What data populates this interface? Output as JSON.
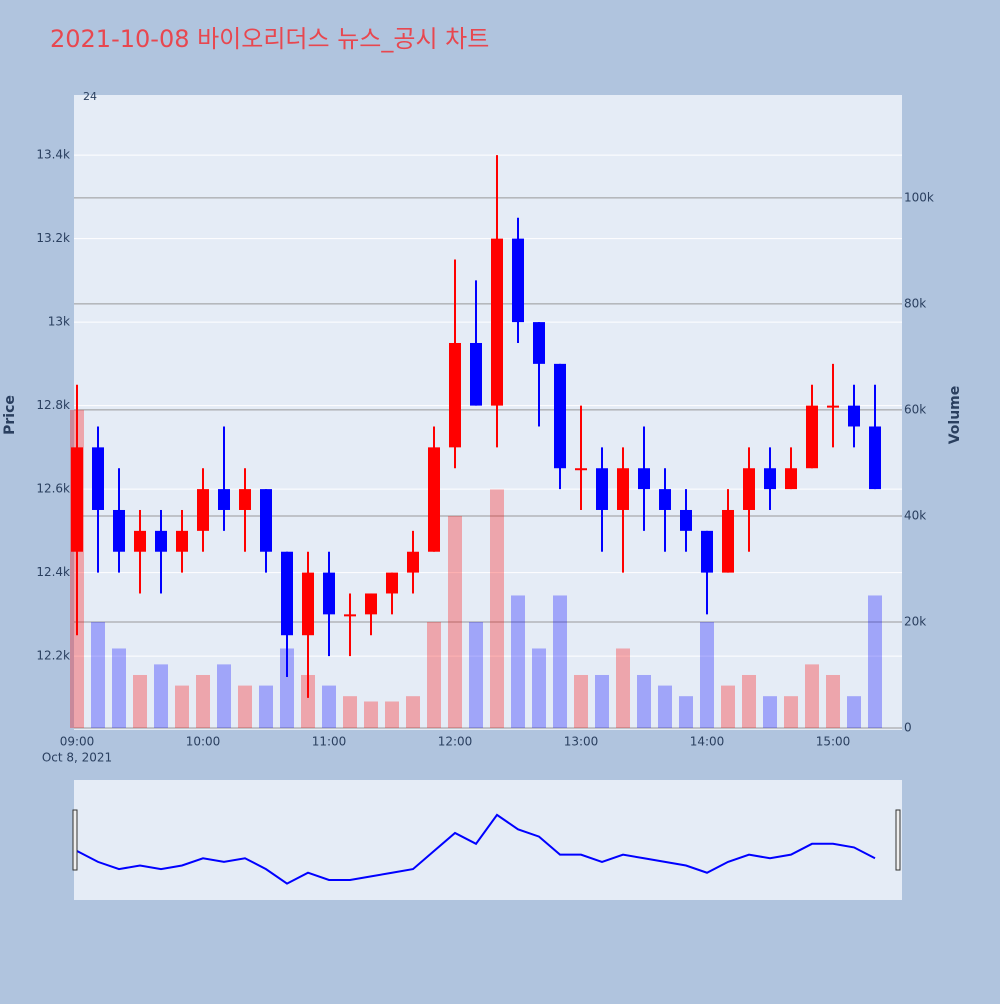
{
  "chart_data": {
    "type": "candlestick",
    "title": "2021-10-08 바이오리더스 뉴스_공시 차트",
    "date_label": "Oct 8, 2021",
    "annotations": [
      "24"
    ],
    "y_label": "Price",
    "y2_label": "Volume",
    "increasing_color": "#ff0000",
    "decreasing_color": "#0000ff",
    "categories": [
      "09:00",
      "09:10",
      "09:20",
      "09:30",
      "09:40",
      "09:50",
      "10:00",
      "10:10",
      "10:20",
      "10:30",
      "10:40",
      "10:50",
      "11:00",
      "11:10",
      "11:20",
      "11:30",
      "11:40",
      "11:50",
      "12:00",
      "12:10",
      "12:20",
      "12:30",
      "12:40",
      "12:50",
      "13:00",
      "13:10",
      "13:20",
      "13:30",
      "13:40",
      "13:50",
      "14:00",
      "14:10",
      "14:20",
      "14:30",
      "14:40",
      "14:50",
      "15:00",
      "15:10",
      "15:20"
    ],
    "open": [
      12450,
      12700,
      12550,
      12450,
      12500,
      12450,
      12500,
      12600,
      12550,
      12600,
      12450,
      12250,
      12400,
      12300,
      12300,
      12350,
      12400,
      12450,
      12700,
      12950,
      12800,
      13200,
      13000,
      12900,
      12650,
      12650,
      12550,
      12650,
      12600,
      12550,
      12500,
      12400,
      12550,
      12650,
      12600,
      12650,
      12800,
      12800,
      12750
    ],
    "high": [
      12850,
      12750,
      12650,
      12550,
      12550,
      12550,
      12650,
      12750,
      12650,
      12600,
      12450,
      12450,
      12450,
      12350,
      12350,
      12400,
      12500,
      12750,
      13150,
      13100,
      13400,
      13250,
      13000,
      12900,
      12800,
      12700,
      12700,
      12750,
      12650,
      12600,
      12500,
      12600,
      12700,
      12700,
      12700,
      12850,
      12900,
      12850,
      12850
    ],
    "low": [
      12250,
      12400,
      12400,
      12350,
      12350,
      12400,
      12450,
      12500,
      12450,
      12400,
      12150,
      12100,
      12200,
      12200,
      12250,
      12300,
      12350,
      12450,
      12650,
      12800,
      12700,
      12950,
      12750,
      12600,
      12550,
      12450,
      12400,
      12500,
      12450,
      12450,
      12300,
      12400,
      12450,
      12550,
      12600,
      12650,
      12700,
      12700,
      12600
    ],
    "close": [
      12700,
      12550,
      12450,
      12500,
      12450,
      12500,
      12600,
      12550,
      12600,
      12450,
      12250,
      12400,
      12300,
      12300,
      12350,
      12400,
      12450,
      12700,
      12950,
      12800,
      13200,
      13000,
      12900,
      12650,
      12650,
      12550,
      12650,
      12600,
      12550,
      12500,
      12400,
      12550,
      12650,
      12600,
      12650,
      12800,
      12800,
      12750,
      12600
    ],
    "volume": [
      60000,
      20000,
      15000,
      10000,
      12000,
      8000,
      10000,
      12000,
      8000,
      8000,
      15000,
      10000,
      8000,
      6000,
      5000,
      5000,
      6000,
      20000,
      40000,
      20000,
      45000,
      25000,
      15000,
      25000,
      10000,
      10000,
      15000,
      10000,
      8000,
      6000,
      20000,
      8000,
      10000,
      6000,
      6000,
      12000,
      10000,
      6000,
      25000
    ],
    "ylim": [
      12023,
      13544
    ],
    "yticks": [
      {
        "value": 12200,
        "label": "12.2k"
      },
      {
        "value": 12400,
        "label": "12.4k"
      },
      {
        "value": 12600,
        "label": "12.6k"
      },
      {
        "value": 12800,
        "label": "12.8k"
      },
      {
        "value": 13000,
        "label": "13k"
      },
      {
        "value": 13200,
        "label": "13.2k"
      },
      {
        "value": 13400,
        "label": "13.4k"
      }
    ],
    "y2lim": [
      0,
      119400
    ],
    "y2ticks": [
      0,
      {
        "value": 20000,
        "label": "20k"
      },
      {
        "value": 40000,
        "label": "40k"
      },
      {
        "value": 60000,
        "label": "60k"
      },
      {
        "value": 80000,
        "label": "80k"
      },
      {
        "value": 100000,
        "label": "100k"
      }
    ],
    "grid": true,
    "rangeslider": true
  }
}
